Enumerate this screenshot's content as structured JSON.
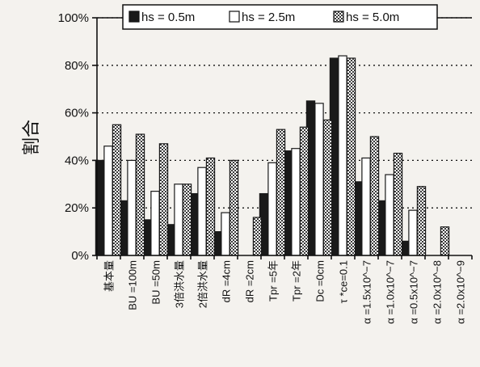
{
  "chart_data": {
    "type": "bar",
    "title": "",
    "xlabel": "",
    "ylabel": "割合",
    "ylim": [
      0,
      100
    ],
    "yticks": [
      0,
      20,
      40,
      60,
      80,
      100
    ],
    "ytick_labels": [
      "0%",
      "20%",
      "40%",
      "60%",
      "80%",
      "100%"
    ],
    "grid": "horizontal dotted",
    "legend_position": "top",
    "categories": [
      "基本量",
      "BU =100m",
      "BU =50m",
      "3倍洪水量",
      "2倍洪水量",
      "dR =4cm",
      "dR =2cm",
      "Tpr =5年",
      "Tpr =2年",
      "Dc =0cm",
      "τ *ce=0.1",
      "α =1.5x10^−7",
      "α =1.0x10^−7",
      "α =0.5x10^−7",
      "α =2.0x10^−8",
      "α =2.0x10^−9"
    ],
    "series": [
      {
        "name": "hs = 0.5m",
        "pattern": "solid",
        "color": "#1a1a1a",
        "values": [
          40,
          23,
          15,
          13,
          26,
          10,
          0,
          26,
          44,
          65,
          83,
          31,
          23,
          6,
          0,
          0
        ]
      },
      {
        "name": "hs = 2.5m",
        "pattern": "hollow",
        "color": "#ffffff",
        "values": [
          46,
          40,
          27,
          30,
          37,
          18,
          0,
          39,
          45,
          64,
          84,
          41,
          34,
          19,
          0,
          0
        ]
      },
      {
        "name": "hs = 5.0m",
        "pattern": "dotted",
        "color": "#999999",
        "values": [
          55,
          51,
          47,
          30,
          41,
          40,
          16,
          53,
          54,
          57,
          83,
          50,
          43,
          29,
          12,
          0
        ]
      }
    ]
  }
}
